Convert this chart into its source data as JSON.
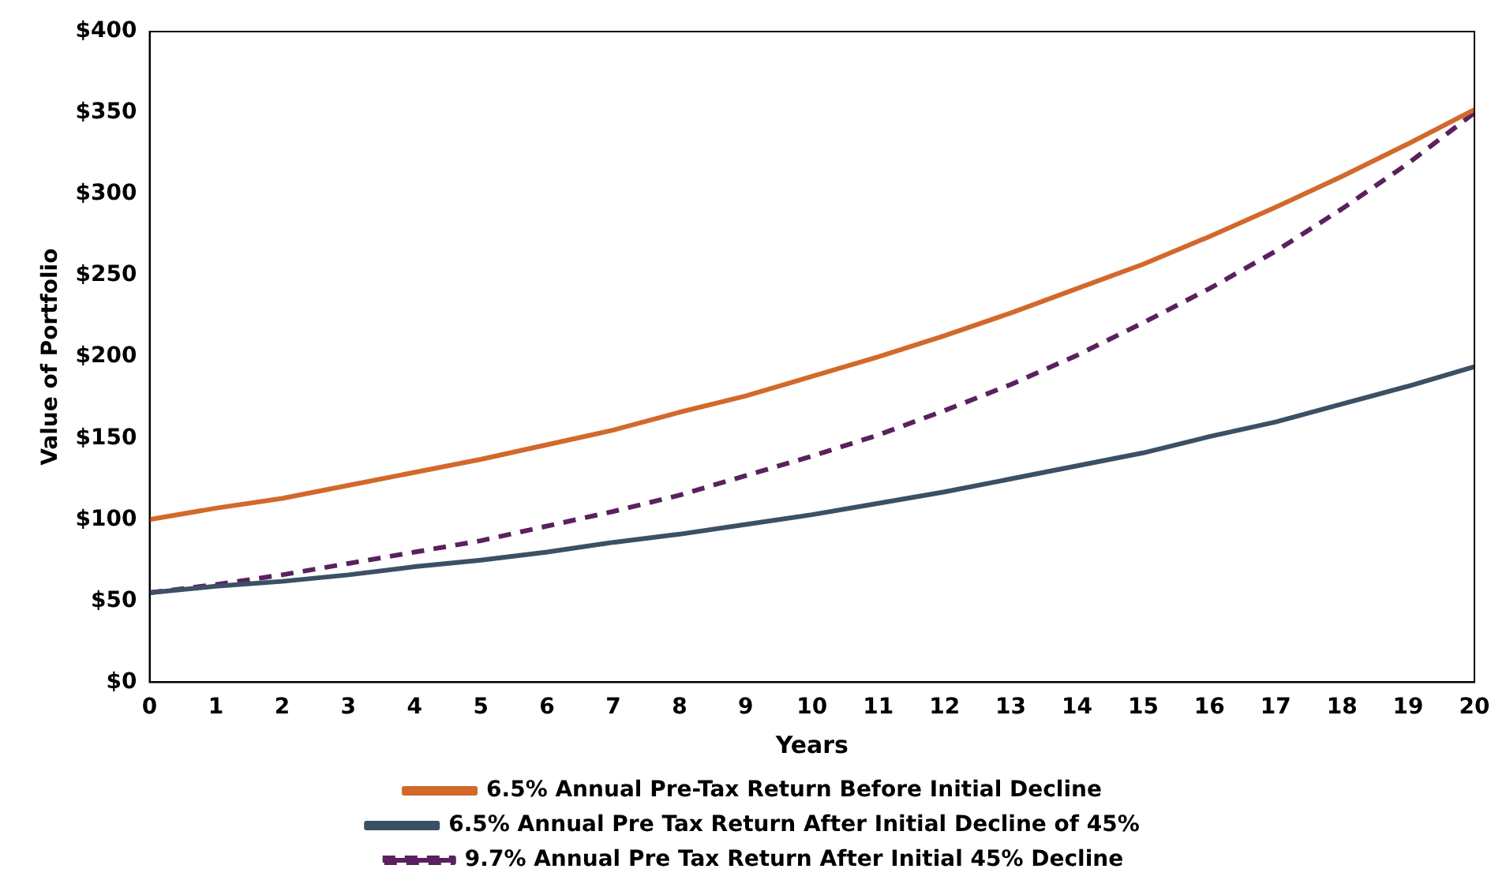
{
  "chart_data": {
    "type": "line",
    "xlabel": "Years",
    "ylabel": "Value of Portfolio",
    "x": [
      0,
      1,
      2,
      3,
      4,
      5,
      6,
      7,
      8,
      9,
      10,
      11,
      12,
      13,
      14,
      15,
      16,
      17,
      18,
      19,
      20
    ],
    "xlim": [
      0,
      20
    ],
    "xticks": [
      0,
      1,
      2,
      3,
      4,
      5,
      6,
      7,
      8,
      9,
      10,
      11,
      12,
      13,
      14,
      15,
      16,
      17,
      18,
      19,
      20
    ],
    "ylim": [
      0,
      400
    ],
    "yticks": [
      {
        "value": 0,
        "label": "$0"
      },
      {
        "value": 50,
        "label": "$50"
      },
      {
        "value": 100,
        "label": "$100"
      },
      {
        "value": 150,
        "label": "$150"
      },
      {
        "value": 200,
        "label": "$200"
      },
      {
        "value": 250,
        "label": "$250"
      },
      {
        "value": 300,
        "label": "$300"
      },
      {
        "value": 350,
        "label": "$350"
      },
      {
        "value": 400,
        "label": "$400"
      }
    ],
    "series": [
      {
        "name": "6.5% Annual Pre-Tax Return Before Initial Decline",
        "color": "#d2692b",
        "line_style": "solid",
        "values": [
          100,
          107,
          113,
          121,
          129,
          137,
          146,
          155,
          166,
          176,
          188,
          200,
          213,
          227,
          242,
          257,
          274,
          292,
          311,
          331,
          352
        ]
      },
      {
        "name": "6.5% Annual Pre Tax Return After Initial Decline of 45%",
        "color": "#3c5064",
        "line_style": "solid",
        "values": [
          55,
          59,
          62,
          66,
          71,
          75,
          80,
          86,
          91,
          97,
          103,
          110,
          117,
          125,
          133,
          141,
          151,
          160,
          171,
          182,
          194
        ]
      },
      {
        "name": "9.7% Annual Pre Tax Return After Initial 45% Decline",
        "color": "#5a215e",
        "line_style": "dashed",
        "values": [
          55,
          60,
          66,
          73,
          80,
          87,
          96,
          105,
          115,
          127,
          139,
          152,
          167,
          183,
          201,
          221,
          242,
          265,
          291,
          319,
          350
        ]
      }
    ],
    "grid": false,
    "legend": "bottom",
    "marker": "none"
  }
}
